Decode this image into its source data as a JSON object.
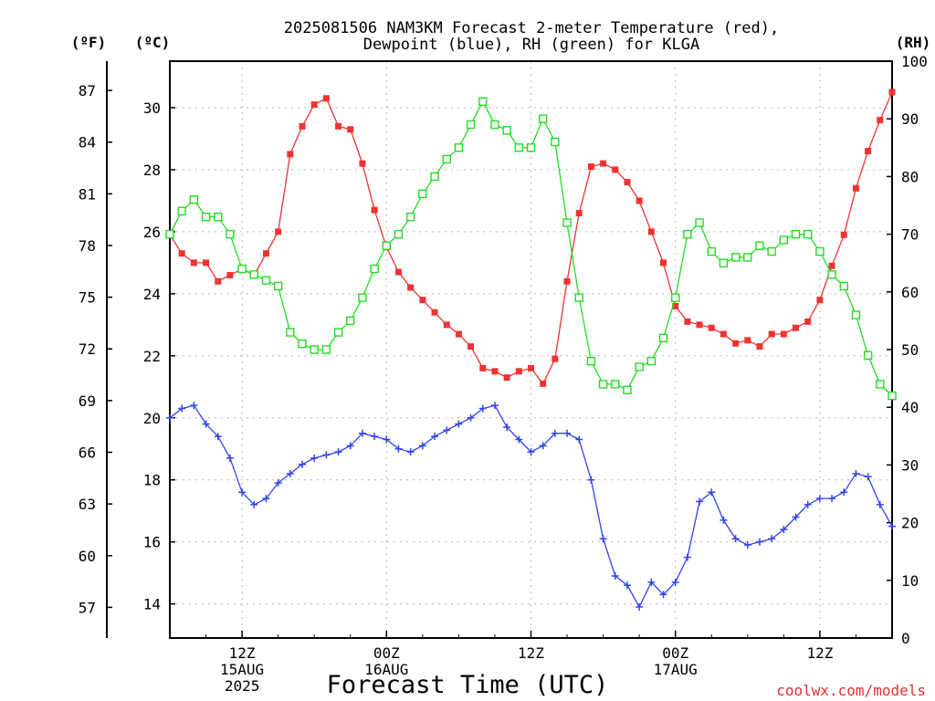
{
  "chart_data": {
    "type": "line",
    "title": [
      "2025081506 NAM3KM Forecast 2-meter Temperature (red),",
      "Dewpoint (blue), RH (green) for KLGA"
    ],
    "xlabel": "Forecast Time (UTC)",
    "credit": "coolwx.com/models",
    "units": {
      "fahrenheit": "(ºF)",
      "celsius": "(ºC)",
      "rh": "(RH)"
    },
    "x_range_hours": [
      0,
      60
    ],
    "x_ticks": [
      {
        "hour": 6,
        "label": [
          "12Z",
          "15AUG",
          "2025"
        ]
      },
      {
        "hour": 18,
        "label": [
          "00Z",
          "16AUG"
        ]
      },
      {
        "hour": 30,
        "label": [
          "12Z"
        ]
      },
      {
        "hour": 42,
        "label": [
          "00Z",
          "17AUG"
        ]
      },
      {
        "hour": 54,
        "label": [
          "12Z"
        ]
      }
    ],
    "y_celsius": {
      "range": [
        12.9,
        31.5
      ],
      "ticks": [
        "14",
        "16",
        "18",
        "20",
        "22",
        "24",
        "26",
        "28",
        "30"
      ]
    },
    "y_fahrenheit": {
      "ticks": [
        "57",
        "60",
        "63",
        "66",
        "69",
        "72",
        "75",
        "78",
        "81",
        "84",
        "87"
      ]
    },
    "y_rh": {
      "range": [
        0,
        100
      ],
      "ticks": [
        "0",
        "10",
        "20",
        "30",
        "40",
        "50",
        "60",
        "70",
        "80",
        "90",
        "100"
      ]
    },
    "grid": true,
    "series": [
      {
        "name": "Temperature",
        "axis": "celsius",
        "color": "#ee3333",
        "marker": "filled-square",
        "x": [
          0,
          1,
          2,
          3,
          4,
          5,
          6,
          7,
          8,
          9,
          10,
          11,
          12,
          13,
          14,
          15,
          16,
          17,
          18,
          19,
          20,
          21,
          22,
          23,
          24,
          25,
          26,
          27,
          28,
          29,
          30,
          31,
          32,
          33,
          34,
          35,
          36,
          37,
          38,
          39,
          40,
          41,
          42,
          43,
          44,
          45,
          46,
          47,
          48,
          49,
          50,
          51,
          52,
          53,
          54,
          55,
          56,
          57,
          58,
          59,
          60
        ],
        "values": [
          25.9,
          25.3,
          25.0,
          25.0,
          24.4,
          24.6,
          24.8,
          24.6,
          25.3,
          26.0,
          28.5,
          29.4,
          30.1,
          30.3,
          29.4,
          29.3,
          28.2,
          26.7,
          25.5,
          24.7,
          24.2,
          23.8,
          23.4,
          23.0,
          22.7,
          22.3,
          21.6,
          21.5,
          21.3,
          21.5,
          21.6,
          21.1,
          21.9,
          24.4,
          26.6,
          28.1,
          28.2,
          28.0,
          27.6,
          27.0,
          26.0,
          25.0,
          23.6,
          23.1,
          23.0,
          22.9,
          22.7,
          22.4,
          22.5,
          22.3,
          22.7,
          22.7,
          22.9,
          23.1,
          23.8,
          24.9,
          25.9,
          27.4,
          28.6,
          29.6,
          30.5
        ]
      },
      {
        "name": "Dewpoint",
        "axis": "celsius",
        "color": "#3344ee",
        "marker": "plus",
        "x": [
          0,
          1,
          2,
          3,
          4,
          5,
          6,
          7,
          8,
          9,
          10,
          11,
          12,
          13,
          14,
          15,
          16,
          17,
          18,
          19,
          20,
          21,
          22,
          23,
          24,
          25,
          26,
          27,
          28,
          29,
          30,
          31,
          32,
          33,
          34,
          35,
          36,
          37,
          38,
          39,
          40,
          41,
          42,
          43,
          44,
          45,
          46,
          47,
          48,
          49,
          50,
          51,
          52,
          53,
          54,
          55,
          56,
          57,
          58,
          59,
          60
        ],
        "values": [
          20.0,
          20.3,
          20.4,
          19.8,
          19.4,
          18.7,
          17.6,
          17.2,
          17.4,
          17.9,
          18.2,
          18.5,
          18.7,
          18.8,
          18.9,
          19.1,
          19.5,
          19.4,
          19.3,
          19.0,
          18.9,
          19.1,
          19.4,
          19.6,
          19.8,
          20.0,
          20.3,
          20.4,
          19.7,
          19.3,
          18.9,
          19.1,
          19.5,
          19.5,
          19.3,
          18.0,
          16.1,
          14.9,
          14.6,
          13.9,
          14.7,
          14.3,
          14.7,
          15.5,
          17.3,
          17.6,
          16.7,
          16.1,
          15.9,
          16.0,
          16.1,
          16.4,
          16.8,
          17.2,
          17.4,
          17.4,
          17.6,
          18.2,
          18.1,
          17.2,
          16.5
        ]
      },
      {
        "name": "RH",
        "axis": "rh",
        "color": "#22dd22",
        "marker": "open-square",
        "x": [
          0,
          1,
          2,
          3,
          4,
          5,
          6,
          7,
          8,
          9,
          10,
          11,
          12,
          13,
          14,
          15,
          16,
          17,
          18,
          19,
          20,
          21,
          22,
          23,
          24,
          25,
          26,
          27,
          28,
          29,
          30,
          31,
          32,
          33,
          34,
          35,
          36,
          37,
          38,
          39,
          40,
          41,
          42,
          43,
          44,
          45,
          46,
          47,
          48,
          49,
          50,
          51,
          52,
          53,
          54,
          55,
          56,
          57,
          58,
          59,
          60
        ],
        "values": [
          70,
          74,
          76,
          73,
          73,
          70,
          64,
          63,
          62,
          61,
          53,
          51,
          50,
          50,
          53,
          55,
          59,
          64,
          68,
          70,
          73,
          77,
          80,
          83,
          85,
          89,
          93,
          89,
          88,
          85,
          85,
          90,
          86,
          72,
          59,
          48,
          44,
          44,
          43,
          47,
          48,
          52,
          59,
          70,
          72,
          67,
          65,
          66,
          66,
          68,
          67,
          69,
          70,
          70,
          67,
          63,
          61,
          56,
          49,
          44,
          42
        ]
      }
    ]
  }
}
